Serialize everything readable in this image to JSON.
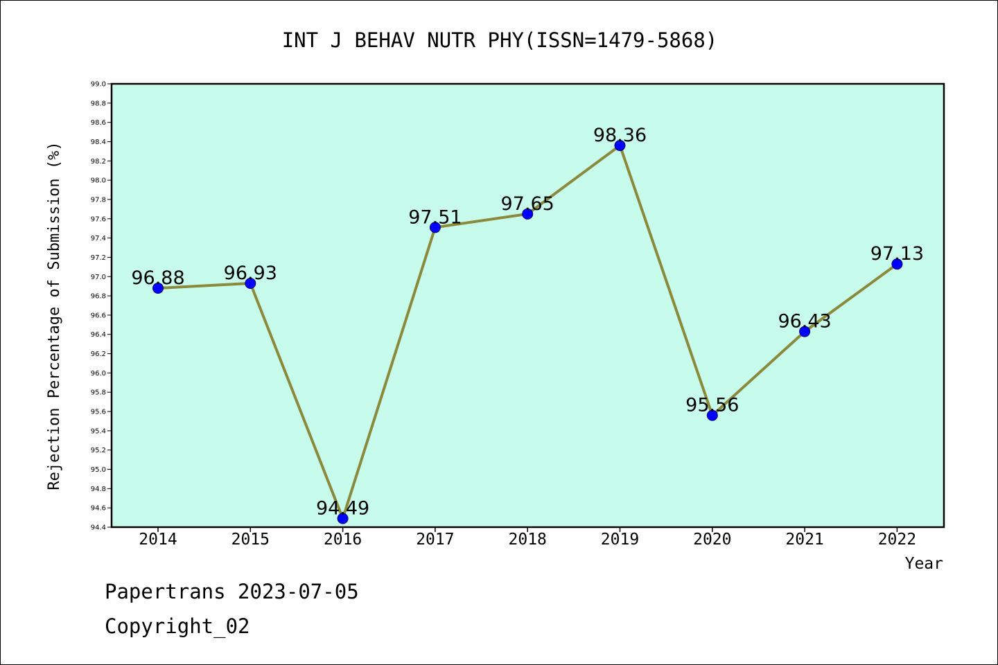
{
  "chart_data": {
    "type": "line",
    "title": "INT J BEHAV NUTR PHY(ISSN=1479-5868)",
    "xlabel": "Year",
    "ylabel": "Rejection Percentage of Submission (%)",
    "categories": [
      "2014",
      "2015",
      "2016",
      "2017",
      "2018",
      "2019",
      "2020",
      "2021",
      "2022"
    ],
    "values": [
      96.88,
      96.93,
      94.49,
      97.51,
      97.65,
      98.36,
      95.56,
      96.43,
      97.13
    ],
    "data_labels": [
      "96.88",
      "96.93",
      "94.49",
      "97.51",
      "97.65",
      "98.36",
      "95.56",
      "96.43",
      "97.13"
    ],
    "ylim": [
      94.4,
      99.0
    ],
    "y_ticks": [
      "94.4",
      "94.6",
      "94.8",
      "95.0",
      "95.2",
      "95.4",
      "95.6",
      "95.8",
      "96.0",
      "96.2",
      "96.4",
      "96.6",
      "96.8",
      "97.0",
      "97.2",
      "97.4",
      "97.6",
      "97.8",
      "98.0",
      "98.2",
      "98.4",
      "98.6",
      "98.8",
      "99.0"
    ],
    "grid": false,
    "legend": "none",
    "colors": {
      "plot_background": "#c7fcec",
      "line": "#8b8a3c",
      "marker": "#0000ff",
      "marker_edge": "#000080"
    }
  },
  "footer": {
    "line1": "Papertrans 2023-07-05",
    "line2": "Copyright_02"
  }
}
